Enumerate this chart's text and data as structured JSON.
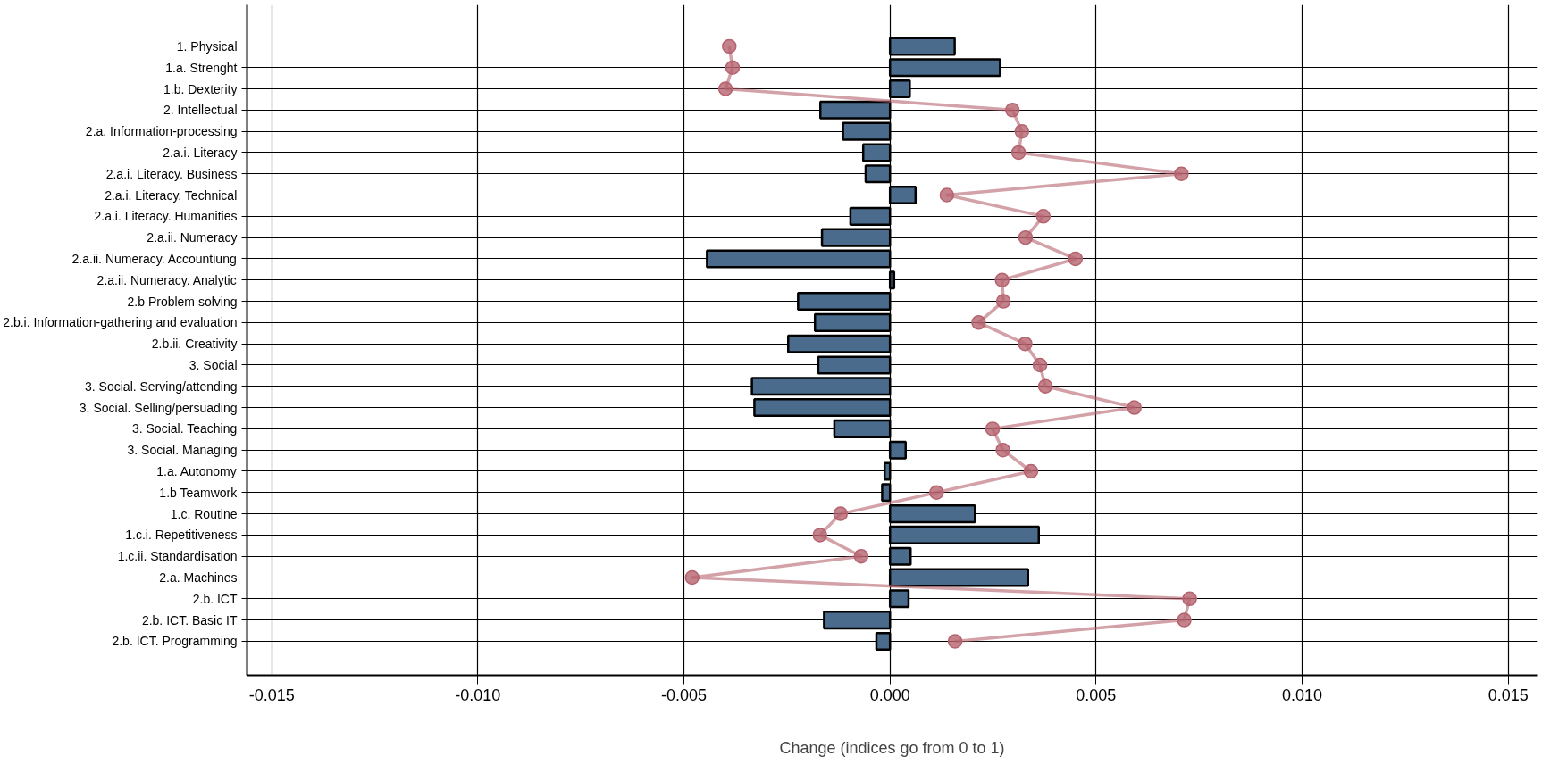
{
  "chart_data": {
    "type": "bar",
    "orientation": "horizontal",
    "categories": [
      "1. Physical",
      "1.a. Strenght",
      "1.b. Dexterity",
      "2. Intellectual",
      "2.a. Information-processing",
      "2.a.i. Literacy",
      "2.a.i. Literacy. Business",
      "2.a.i. Literacy. Technical",
      "2.a.i. Literacy. Humanities",
      "2.a.ii. Numeracy",
      "2.a.ii. Numeracy. Accountiung",
      "2.a.ii. Numeracy. Analytic",
      "2.b Problem solving",
      "2.b.i. Information-gathering and evaluation",
      "2.b.ii. Creativity",
      "3. Social",
      "3. Social. Serving/attending",
      "3. Social. Selling/persuading",
      "3. Social. Teaching",
      "3. Social. Managing",
      "1.a. Autonomy",
      "1.b Teamwork",
      "1.c. Routine",
      "1.c.i. Repetitiveness",
      "1.c.ii. Standardisation",
      "2.a. Machines",
      "2.b. ICT",
      "2.b. ICT. Basic IT",
      "2.b. ICT. Programming"
    ],
    "series": [
      {
        "color": "#4a6b8c",
        "values": [
          0.00157,
          0.00267,
          0.00048,
          -0.00169,
          -0.00114,
          -0.00065,
          -0.00059,
          0.00062,
          -0.00096,
          -0.00165,
          -0.00444,
          0.0001,
          -0.00223,
          -0.00182,
          -0.00247,
          -0.00174,
          -0.00335,
          -0.00329,
          -0.00135,
          0.00038,
          -0.00013,
          -0.00019,
          0.00206,
          0.00361,
          0.0005,
          0.00335,
          0.00045,
          -0.0016,
          -0.00033
        ]
      },
      {
        "type": "line",
        "color": "#b5636e",
        "marker": "circle",
        "values": [
          -0.0039,
          -0.00382,
          -0.00399,
          0.00297,
          0.0032,
          0.00312,
          0.00707,
          0.00138,
          0.00372,
          0.00329,
          0.0045,
          0.00272,
          0.00275,
          0.00215,
          0.00328,
          0.00364,
          0.00377,
          0.00593,
          0.00249,
          0.00274,
          0.00342,
          0.00113,
          -0.0012,
          -0.0017,
          -0.0007,
          -0.0048,
          0.00727,
          0.00714,
          0.00158
        ]
      }
    ],
    "xlim": [
      -0.0156,
      0.0157
    ],
    "xticks": [
      {
        "value": -0.015,
        "label": "-0.015"
      },
      {
        "value": -0.01,
        "label": "-0.010"
      },
      {
        "value": -0.005,
        "label": "-0.005"
      },
      {
        "value": 0,
        "label": "0.000"
      },
      {
        "value": 0.005,
        "label": "0.005"
      },
      {
        "value": 0.01,
        "label": "0.010"
      },
      {
        "value": 0.015,
        "label": "0.015"
      }
    ],
    "xlabel": "Change (indices go from 0 to 1)",
    "grid": true
  }
}
